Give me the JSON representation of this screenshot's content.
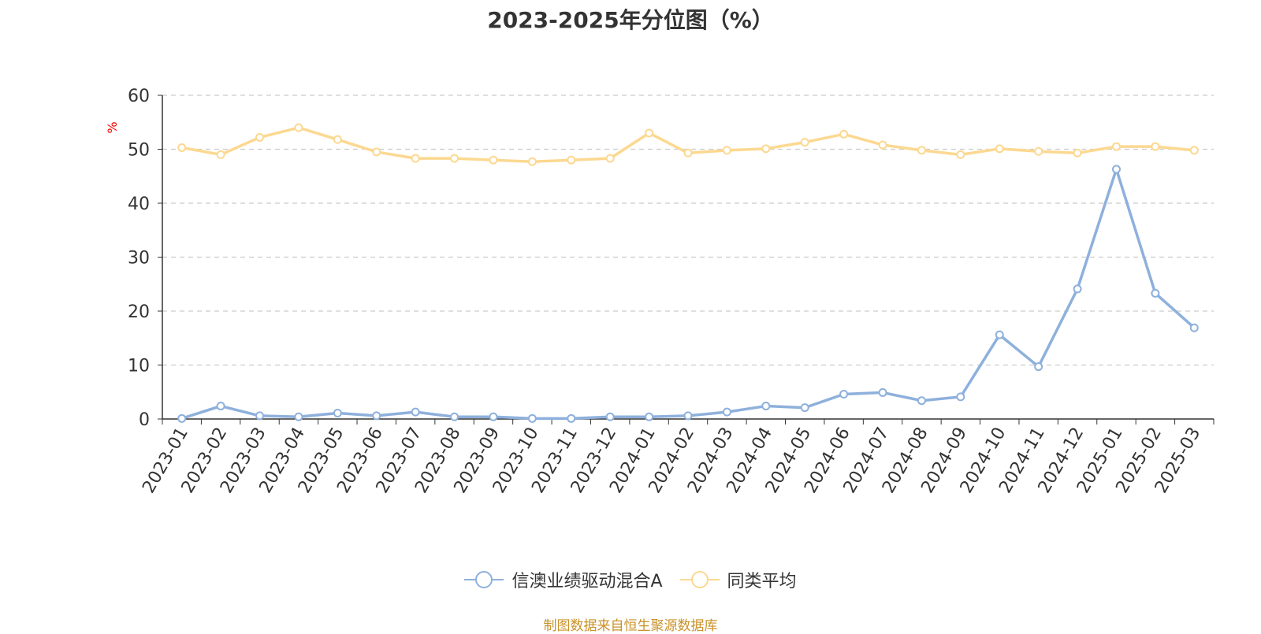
{
  "chart_data": {
    "type": "line",
    "title": "2023-2025年分位图（%）",
    "ylabel": "%",
    "xlabel": "",
    "ylim": [
      0,
      60
    ],
    "yticks": [
      0,
      10,
      20,
      30,
      40,
      50,
      60
    ],
    "grid": "horizontal dashed",
    "legend_position": "bottom-center",
    "categories": [
      "2023-01",
      "2023-02",
      "2023-03",
      "2023-04",
      "2023-05",
      "2023-06",
      "2023-07",
      "2023-08",
      "2023-09",
      "2023-10",
      "2023-11",
      "2023-12",
      "2024-01",
      "2024-02",
      "2024-03",
      "2024-04",
      "2024-05",
      "2024-06",
      "2024-07",
      "2024-08",
      "2024-09",
      "2024-10",
      "2024-11",
      "2024-12",
      "2025-01",
      "2025-02",
      "2025-03"
    ],
    "series": [
      {
        "name": "信澳业绩驱动混合A",
        "color": "#8eb0dc",
        "values": [
          0.1,
          2.4,
          0.6,
          0.4,
          1.1,
          0.6,
          1.3,
          0.4,
          0.4,
          0.1,
          0.1,
          0.4,
          0.4,
          0.6,
          1.3,
          2.4,
          2.1,
          4.6,
          4.9,
          3.4,
          4.1,
          15.6,
          9.7,
          24.1,
          46.3,
          23.3,
          16.9
        ]
      },
      {
        "name": "同类平均",
        "color": "#fcd890",
        "values": [
          50.3,
          49.0,
          52.2,
          54.0,
          51.8,
          49.5,
          48.3,
          48.3,
          48.0,
          47.7,
          48.0,
          48.3,
          53.0,
          49.3,
          49.8,
          50.1,
          51.3,
          52.8,
          50.8,
          49.8,
          49.0,
          50.1,
          49.6,
          49.3,
          50.5,
          50.5,
          49.8
        ]
      }
    ]
  },
  "source_note": "制图数据来自恒生聚源数据库"
}
